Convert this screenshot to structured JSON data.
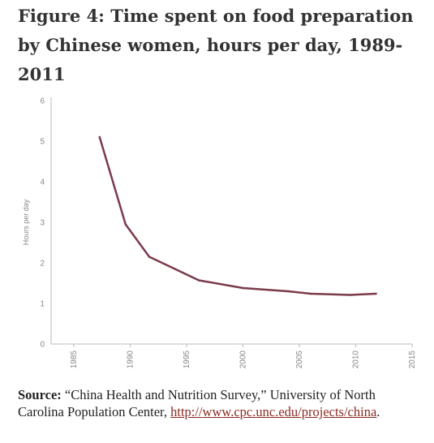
{
  "chart_data": {
    "type": "line",
    "title": "Figure 4: Time spent on food preparation by Chinese women, hours per day, 1989-2011",
    "xlabel": "",
    "ylabel": "Hours per day",
    "xlim": [
      1983,
      2015
    ],
    "ylim": [
      0,
      6
    ],
    "xticks": [
      "1985",
      "1990",
      "1995",
      "2000",
      "2005",
      "2010",
      "2015"
    ],
    "yticks": [
      "0",
      "1",
      "2",
      "3",
      "4",
      "5",
      "6"
    ],
    "grid": false,
    "series": [
      {
        "color": "#7a3b4a",
        "x": [
          1987.3,
          1989.6,
          1991.7,
          1996.1,
          2000,
          2004,
          2006,
          2009.5,
          2011.8
        ],
        "values": [
          5.1,
          2.95,
          2.15,
          1.57,
          1.38,
          1.3,
          1.24,
          1.21,
          1.24
        ]
      }
    ]
  },
  "source": {
    "label": "Source:",
    "text": " “China Health and Nutrition Survey,” University of North Carolina Population Center, ",
    "link": "http://www.cpc.unc.edu/projects/china",
    "end": "."
  }
}
